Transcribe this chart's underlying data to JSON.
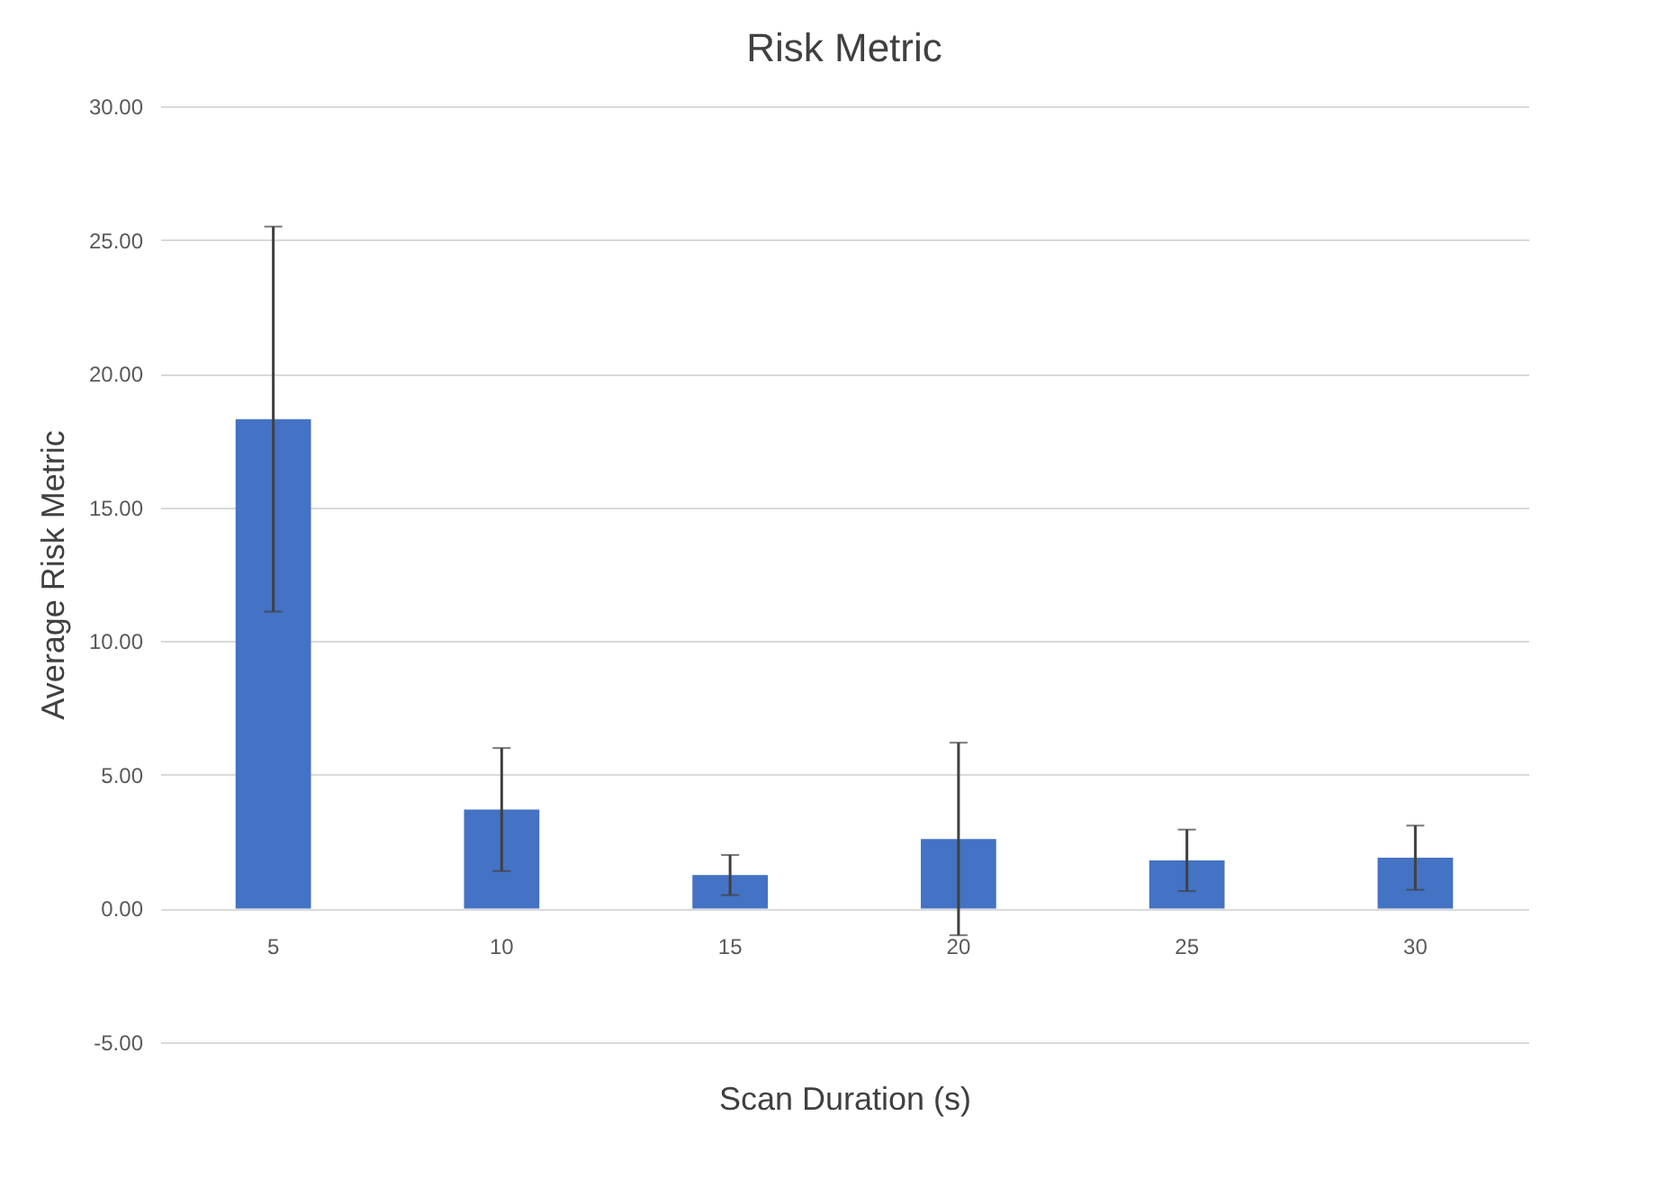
{
  "chart_data": {
    "type": "bar",
    "title": "Risk Metric",
    "xlabel": "Scan Duration (s)",
    "ylabel": "Average Risk Metric",
    "categories": [
      "5",
      "10",
      "15",
      "20",
      "25",
      "30"
    ],
    "values": [
      18.3,
      3.7,
      1.25,
      2.6,
      1.8,
      1.9
    ],
    "errors": [
      7.2,
      2.3,
      0.75,
      3.6,
      1.15,
      1.2
    ],
    "color": "#4472c4",
    "ylim": [
      -5,
      30
    ],
    "yticks": [
      {
        "value": -5,
        "label": "-5.00"
      },
      {
        "value": 0,
        "label": "0.00"
      },
      {
        "value": 5,
        "label": "5.00"
      },
      {
        "value": 10,
        "label": "10.00"
      },
      {
        "value": 15,
        "label": "15.00"
      },
      {
        "value": 20,
        "label": "20.00"
      },
      {
        "value": 25,
        "label": "25.00"
      },
      {
        "value": 30,
        "label": "30.00"
      }
    ],
    "grid": "y"
  }
}
